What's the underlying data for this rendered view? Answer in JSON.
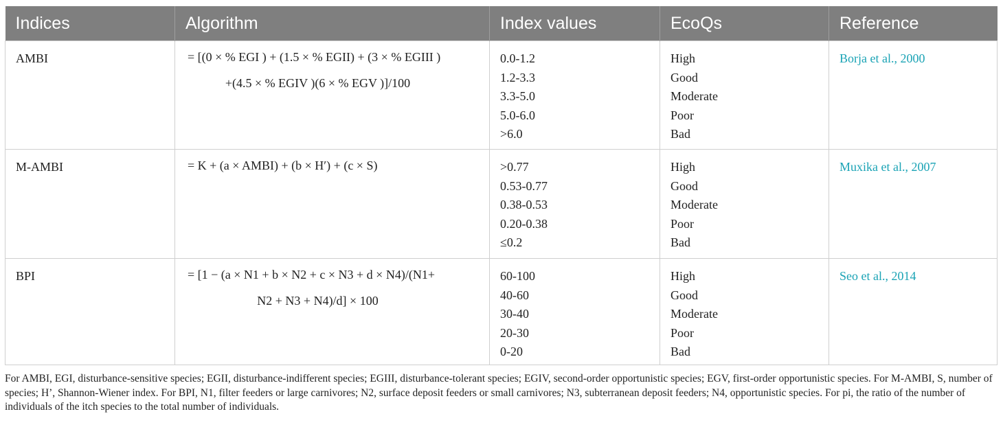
{
  "table": {
    "headers": [
      "Indices",
      "Algorithm",
      "Index values",
      "EcoQs",
      "Reference"
    ],
    "rows": [
      {
        "index": "AMBI",
        "algorithm_line1": "= [(0 × % EGI ) + (1.5 × % EGII) + (3 × % EGIII )",
        "algorithm_line2": "+(4.5 × % EGIV )(6 × % EGV )]/100",
        "values": [
          "0.0-1.2",
          "1.2-3.3",
          "3.3-5.0",
          "5.0-6.0",
          ">6.0"
        ],
        "ecoqs": [
          "High",
          "Good",
          "Moderate",
          "Poor",
          "Bad"
        ],
        "reference": "Borja et al., 2000"
      },
      {
        "index": "M-AMBI",
        "algorithm_line1": "= K + (a × AMBI) + (b × H′) + (c × S)",
        "algorithm_line2": "",
        "values": [
          ">0.77",
          "0.53-0.77",
          "0.38-0.53",
          "0.20-0.38",
          "≤0.2"
        ],
        "ecoqs": [
          "High",
          "Good",
          "Moderate",
          "Poor",
          "Bad"
        ],
        "reference": "Muxika et al., 2007"
      },
      {
        "index": "BPI",
        "algorithm_line1": "= [1 − (a × N1 + b × N2 + c × N3 + d × N4)/(N1+",
        "algorithm_line2": "N2 + N3 + N4)/d] × 100",
        "values": [
          "60-100",
          "40-60",
          "30-40",
          "20-30",
          "0-20"
        ],
        "ecoqs": [
          "High",
          "Good",
          "Moderate",
          "Poor",
          "Bad"
        ],
        "reference": "Seo et al., 2014"
      }
    ]
  },
  "footnote": "For AMBI, EGI, disturbance-sensitive species; EGII, disturbance-indifferent species; EGIII, disturbance-tolerant species; EGIV, second-order opportunistic species; EGV, first-order opportunistic species. For M-AMBI, S, number of species; H’, Shannon-Wiener index. For BPI, N1, filter feeders or large carnivores; N2, surface deposit feeders or small carnivores; N3, subterranean deposit feeders; N4, opportunistic species. For pi, the ratio of the number of individuals of the itch species to the total number of individuals.",
  "colors": {
    "header_bg": "#7f7f7f",
    "link": "#1aa3b5"
  }
}
